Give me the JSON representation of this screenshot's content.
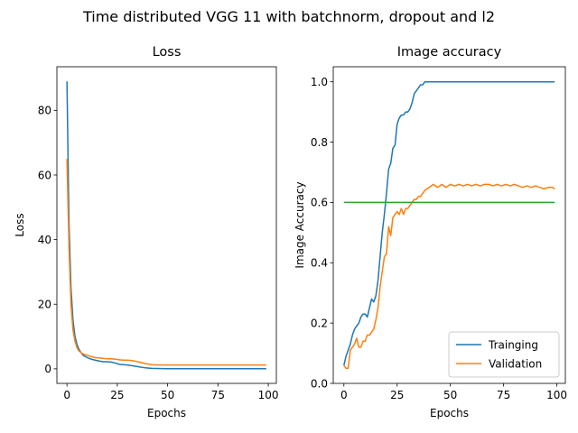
{
  "figure": {
    "suptitle": "Time distributed VGG 11 with batchnorm, dropout and l2"
  },
  "chart_data": [
    {
      "type": "line",
      "title": "Loss",
      "xlabel": "Epochs",
      "ylabel": "Loss",
      "xlim": [
        -5,
        104
      ],
      "ylim": [
        -4.5,
        93.5
      ],
      "xticks": [
        0,
        25,
        50,
        75,
        100
      ],
      "xtick_labels": [
        "0",
        "25",
        "50",
        "75",
        "100"
      ],
      "yticks": [
        0,
        20,
        40,
        60,
        80
      ],
      "ytick_labels": [
        "0",
        "20",
        "40",
        "60",
        "80"
      ],
      "grid": false,
      "legend": "none",
      "series": [
        {
          "color": "#1f77b4",
          "x": [
            0,
            1,
            2,
            3,
            4,
            5,
            6,
            7,
            8,
            10,
            12,
            14,
            16,
            18,
            20,
            22,
            24,
            26,
            28,
            30,
            33,
            36,
            39,
            42,
            45,
            50,
            60,
            70,
            80,
            90,
            99
          ],
          "values": [
            89,
            45,
            25,
            15,
            10,
            7.5,
            6,
            5,
            4.2,
            3.5,
            3,
            2.7,
            2.4,
            2.2,
            2.2,
            2.1,
            1.8,
            1.4,
            1.3,
            1.2,
            0.9,
            0.6,
            0.3,
            0.15,
            0.1,
            0.05,
            0.05,
            0.05,
            0.05,
            0.05,
            0.05
          ]
        },
        {
          "color": "#ff7f0e",
          "x": [
            0,
            1,
            2,
            3,
            4,
            5,
            6,
            7,
            8,
            10,
            12,
            14,
            16,
            18,
            20,
            22,
            24,
            26,
            28,
            30,
            33,
            36,
            39,
            42,
            45,
            50,
            60,
            70,
            80,
            90,
            99
          ],
          "values": [
            65,
            38,
            20,
            12,
            8.5,
            6.5,
            5.5,
            5,
            4.6,
            4.2,
            3.8,
            3.5,
            3.4,
            3.2,
            3.1,
            3.1,
            3,
            2.8,
            2.7,
            2.7,
            2.5,
            2.1,
            1.6,
            1.3,
            1.2,
            1.2,
            1.2,
            1.2,
            1.2,
            1.2,
            1.2
          ]
        }
      ]
    },
    {
      "type": "line",
      "title": "Image accuracy",
      "xlabel": "Epochs",
      "ylabel": "Image Accuracy",
      "xlim": [
        -5,
        104
      ],
      "ylim": [
        0,
        1.05
      ],
      "xticks": [
        0,
        25,
        50,
        75,
        100
      ],
      "xtick_labels": [
        "0",
        "25",
        "50",
        "75",
        "100"
      ],
      "yticks": [
        0,
        0.2,
        0.4,
        0.6,
        0.8,
        1.0
      ],
      "ytick_labels": [
        "0.0",
        "0.2",
        "0.4",
        "0.6",
        "0.8",
        "1.0"
      ],
      "grid": false,
      "legend": "bottom-right",
      "series": [
        {
          "name": "Trainging",
          "color": "#1f77b4",
          "x": [
            0,
            1,
            2,
            3,
            4,
            5,
            6,
            7,
            8,
            9,
            10,
            11,
            12,
            13,
            14,
            15,
            16,
            17,
            18,
            19,
            20,
            21,
            22,
            23,
            24,
            25,
            26,
            27,
            28,
            29,
            30,
            31,
            32,
            33,
            34,
            35,
            36,
            37,
            38,
            39,
            40,
            41,
            42,
            45,
            50,
            60,
            70,
            80,
            90,
            99
          ],
          "values": [
            0.06,
            0.09,
            0.11,
            0.13,
            0.16,
            0.18,
            0.19,
            0.2,
            0.22,
            0.23,
            0.23,
            0.22,
            0.25,
            0.28,
            0.27,
            0.29,
            0.34,
            0.42,
            0.5,
            0.56,
            0.63,
            0.71,
            0.73,
            0.78,
            0.79,
            0.86,
            0.88,
            0.89,
            0.89,
            0.9,
            0.9,
            0.91,
            0.93,
            0.96,
            0.97,
            0.98,
            0.99,
            0.99,
            1.0,
            1.0,
            1.0,
            1.0,
            1.0,
            1.0,
            1.0,
            1.0,
            1.0,
            1.0,
            1.0,
            1.0
          ]
        },
        {
          "name": "Validation",
          "color": "#ff7f0e",
          "x": [
            0,
            1,
            2,
            3,
            4,
            5,
            6,
            7,
            8,
            9,
            10,
            11,
            12,
            13,
            14,
            15,
            16,
            17,
            18,
            19,
            20,
            21,
            22,
            23,
            24,
            25,
            26,
            27,
            28,
            29,
            30,
            31,
            32,
            33,
            34,
            35,
            36,
            37,
            38,
            39,
            40,
            42,
            44,
            46,
            48,
            50,
            52,
            54,
            56,
            58,
            60,
            62,
            64,
            66,
            68,
            70,
            72,
            74,
            76,
            78,
            80,
            82,
            84,
            86,
            88,
            90,
            92,
            94,
            96,
            98,
            99
          ],
          "values": [
            0.06,
            0.05,
            0.05,
            0.11,
            0.12,
            0.13,
            0.15,
            0.12,
            0.12,
            0.14,
            0.14,
            0.16,
            0.16,
            0.17,
            0.18,
            0.21,
            0.25,
            0.32,
            0.37,
            0.42,
            0.43,
            0.52,
            0.49,
            0.55,
            0.56,
            0.57,
            0.56,
            0.58,
            0.56,
            0.58,
            0.58,
            0.59,
            0.6,
            0.61,
            0.61,
            0.62,
            0.62,
            0.63,
            0.64,
            0.645,
            0.65,
            0.66,
            0.65,
            0.66,
            0.65,
            0.66,
            0.655,
            0.66,
            0.655,
            0.66,
            0.655,
            0.66,
            0.655,
            0.66,
            0.66,
            0.655,
            0.66,
            0.655,
            0.66,
            0.655,
            0.66,
            0.655,
            0.65,
            0.655,
            0.65,
            0.655,
            0.65,
            0.645,
            0.65,
            0.65,
            0.645
          ]
        },
        {
          "color": "#2ca02c",
          "x": [
            0,
            99
          ],
          "values": [
            0.6,
            0.6
          ]
        }
      ]
    }
  ]
}
